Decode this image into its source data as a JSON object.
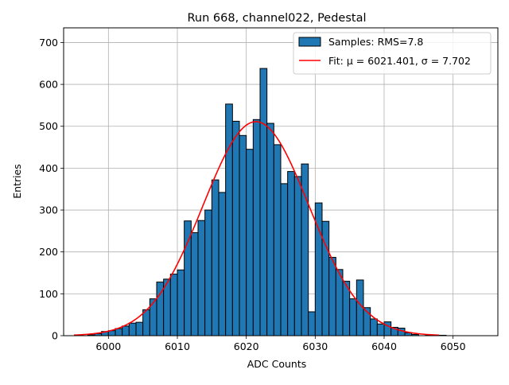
{
  "chart_data": {
    "type": "bar",
    "title": "Run 668, channel022, Pedestal",
    "xlabel": "ADC Counts",
    "ylabel": "Entries",
    "xlim": [
      5993.5,
      6056.5
    ],
    "ylim": [
      0,
      735
    ],
    "xticks": [
      6000,
      6010,
      6020,
      6030,
      6040,
      6050
    ],
    "yticks": [
      0,
      100,
      200,
      300,
      400,
      500,
      600,
      700
    ],
    "grid": true,
    "legend_position": "top-right",
    "colors": {
      "bar_fill": "#1f77b4",
      "bar_edge": "#000000",
      "fit_line": "#ff0000",
      "grid": "#b0b0b0"
    },
    "histogram": {
      "name": "Samples: RMS=7.8",
      "bin_start": 5995,
      "bin_width": 1,
      "counts": [
        0,
        0,
        2,
        5,
        10,
        12,
        17,
        23,
        30,
        32,
        62,
        88,
        128,
        135,
        147,
        157,
        274,
        246,
        275,
        300,
        372,
        342,
        553,
        512,
        478,
        445,
        516,
        638,
        507,
        456,
        363,
        392,
        380,
        410,
        57,
        317,
        273,
        187,
        158,
        130,
        88,
        133,
        67,
        40,
        28,
        33,
        20,
        18,
        7,
        3,
        0,
        1,
        0,
        1,
        0,
        0,
        0,
        0,
        0,
        0
      ]
    },
    "fit": {
      "name": "Fit: μ = 6021.401, σ = 7.702",
      "mu": 6021.401,
      "sigma": 7.702,
      "peak": 511,
      "x_range": [
        5995,
        6048
      ]
    }
  }
}
